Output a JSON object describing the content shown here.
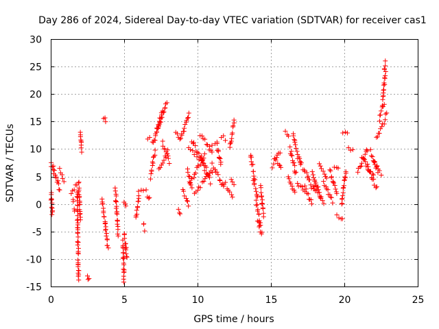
{
  "chart_data": {
    "type": "scatter",
    "title": "Day 286 of 2024, Sidereal Day-to-day VTEC variation (SDTVAR) for receiver cas1",
    "xlabel": "GPS time / hours",
    "ylabel": "SDTVAR / TECUs",
    "xlim": [
      0,
      25
    ],
    "ylim": [
      -15,
      30
    ],
    "xticks": [
      0,
      5,
      10,
      15,
      20,
      25
    ],
    "yticks": [
      -15,
      -10,
      -5,
      0,
      5,
      10,
      15,
      20,
      25,
      30
    ],
    "xtick_labels": [
      "0",
      "5",
      "10",
      "15",
      "20",
      "25"
    ],
    "ytick_labels": [
      "-15",
      "-10",
      "-5",
      "0",
      "5",
      "10",
      "15",
      "20",
      "25",
      "30"
    ],
    "grid": true,
    "marker": "+",
    "color": "#ff0000",
    "segments": [
      {
        "x0": 0.0,
        "x1": 0.2,
        "y0": 7.5,
        "y1": 5.5
      },
      {
        "x0": 0.0,
        "x1": 0.1,
        "y0": 3.0,
        "y1": -2.0
      },
      {
        "x0": 0.2,
        "x1": 0.6,
        "y0": 6.5,
        "y1": 2.5
      },
      {
        "x0": 0.6,
        "x1": 0.9,
        "y0": 6.5,
        "y1": 4.5
      },
      {
        "x0": 1.4,
        "x1": 1.8,
        "y0": 2.0,
        "y1": 3.5
      },
      {
        "x0": 1.5,
        "x1": 1.6,
        "y0": 0.5,
        "y1": -1.0
      },
      {
        "x0": 1.8,
        "x1": 1.9,
        "y0": 2.5,
        "y1": -14.0
      },
      {
        "x0": 1.9,
        "x1": 2.0,
        "y0": 4.0,
        "y1": -3.0
      },
      {
        "x0": 2.0,
        "x1": 2.1,
        "y0": 13.0,
        "y1": 9.5
      },
      {
        "x0": 2.5,
        "x1": 2.6,
        "y0": -13.5,
        "y1": -13.8
      },
      {
        "x0": 3.5,
        "x1": 3.7,
        "y0": 1.0,
        "y1": -3.5
      },
      {
        "x0": 3.6,
        "x1": 3.75,
        "y0": 16.0,
        "y1": 14.8
      },
      {
        "x0": 3.7,
        "x1": 3.9,
        "y0": -3.5,
        "y1": -8.0
      },
      {
        "x0": 4.4,
        "x1": 4.6,
        "y0": 2.5,
        "y1": -5.5
      },
      {
        "x0": 4.9,
        "x1": 5.0,
        "y0": -7.0,
        "y1": -14.0
      },
      {
        "x0": 5.0,
        "x1": 5.2,
        "y0": -5.5,
        "y1": -10.0
      },
      {
        "x0": 5.0,
        "x1": 5.1,
        "y0": 0.0,
        "y1": -0.5
      },
      {
        "x0": 5.8,
        "x1": 6.0,
        "y0": -2.5,
        "y1": 1.5
      },
      {
        "x0": 6.0,
        "x1": 6.5,
        "y0": 2.0,
        "y1": 3.0
      },
      {
        "x0": 6.3,
        "x1": 6.4,
        "y0": -3.5,
        "y1": -4.5
      },
      {
        "x0": 6.6,
        "x1": 6.7,
        "y0": 1.0,
        "y1": 1.5
      },
      {
        "x0": 6.6,
        "x1": 6.9,
        "y0": 12.0,
        "y1": 11.5
      },
      {
        "x0": 6.8,
        "x1": 7.1,
        "y0": 5.0,
        "y1": 9.5
      },
      {
        "x0": 7.0,
        "x1": 7.6,
        "y0": 11.0,
        "y1": 17.0
      },
      {
        "x0": 7.2,
        "x1": 7.9,
        "y0": 13.0,
        "y1": 18.5
      },
      {
        "x0": 7.4,
        "x1": 8.0,
        "y0": 6.5,
        "y1": 9.5
      },
      {
        "x0": 7.6,
        "x1": 8.1,
        "y0": 11.0,
        "y1": 7.5
      },
      {
        "x0": 8.5,
        "x1": 8.7,
        "y0": 13.0,
        "y1": 12.5
      },
      {
        "x0": 8.7,
        "x1": 8.8,
        "y0": -1.0,
        "y1": -1.5
      },
      {
        "x0": 8.8,
        "x1": 9.4,
        "y0": 11.5,
        "y1": 16.5
      },
      {
        "x0": 9.0,
        "x1": 9.4,
        "y0": 2.5,
        "y1": 0.0
      },
      {
        "x0": 9.3,
        "x1": 9.6,
        "y0": 6.0,
        "y1": 3.0
      },
      {
        "x0": 9.4,
        "x1": 10.2,
        "y0": 10.0,
        "y1": 8.0
      },
      {
        "x0": 9.5,
        "x1": 10.5,
        "y0": 4.0,
        "y1": 9.0
      },
      {
        "x0": 9.6,
        "x1": 10.6,
        "y0": 11.5,
        "y1": 7.0
      },
      {
        "x0": 9.8,
        "x1": 11.0,
        "y0": 2.0,
        "y1": 6.0
      },
      {
        "x0": 10.2,
        "x1": 11.0,
        "y0": 12.5,
        "y1": 9.5
      },
      {
        "x0": 10.3,
        "x1": 10.9,
        "y0": 7.5,
        "y1": 4.0
      },
      {
        "x0": 10.8,
        "x1": 11.2,
        "y0": 10.5,
        "y1": 11.0
      },
      {
        "x0": 11.0,
        "x1": 11.8,
        "y0": 7.0,
        "y1": 3.0
      },
      {
        "x0": 11.3,
        "x1": 11.6,
        "y0": 11.0,
        "y1": 7.0
      },
      {
        "x0": 11.6,
        "x1": 11.9,
        "y0": 12.5,
        "y1": 11.5
      },
      {
        "x0": 11.8,
        "x1": 12.4,
        "y0": 4.0,
        "y1": 1.5
      },
      {
        "x0": 12.2,
        "x1": 12.5,
        "y0": 10.5,
        "y1": 15.0
      },
      {
        "x0": 12.3,
        "x1": 12.5,
        "y0": 4.5,
        "y1": 3.5
      },
      {
        "x0": 13.6,
        "x1": 13.9,
        "y0": 9.0,
        "y1": 4.5
      },
      {
        "x0": 13.8,
        "x1": 14.1,
        "y0": 4.0,
        "y1": 1.0
      },
      {
        "x0": 14.0,
        "x1": 14.3,
        "y0": 0.5,
        "y1": -3.5
      },
      {
        "x0": 14.1,
        "x1": 14.4,
        "y0": -3.0,
        "y1": -5.5
      },
      {
        "x0": 14.3,
        "x1": 14.5,
        "y0": 3.0,
        "y1": -2.0
      },
      {
        "x0": 15.1,
        "x1": 15.6,
        "y0": 7.0,
        "y1": 9.5
      },
      {
        "x0": 15.3,
        "x1": 15.7,
        "y0": 8.5,
        "y1": 6.5
      },
      {
        "x0": 16.0,
        "x1": 16.2,
        "y0": 13.0,
        "y1": 12.0
      },
      {
        "x0": 16.2,
        "x1": 16.6,
        "y0": 5.0,
        "y1": 2.0
      },
      {
        "x0": 16.3,
        "x1": 16.7,
        "y0": 10.0,
        "y1": 5.5
      },
      {
        "x0": 16.5,
        "x1": 17.0,
        "y0": 12.5,
        "y1": 7.0
      },
      {
        "x0": 16.8,
        "x1": 17.3,
        "y0": 4.0,
        "y1": 2.0
      },
      {
        "x0": 17.0,
        "x1": 17.5,
        "y0": 7.5,
        "y1": 5.0
      },
      {
        "x0": 17.3,
        "x1": 17.8,
        "y0": 3.0,
        "y1": 0.0
      },
      {
        "x0": 17.5,
        "x1": 18.0,
        "y0": 5.0,
        "y1": 2.0
      },
      {
        "x0": 17.8,
        "x1": 18.4,
        "y0": 6.0,
        "y1": 1.0
      },
      {
        "x0": 18.0,
        "x1": 18.6,
        "y0": 3.0,
        "y1": 0.5
      },
      {
        "x0": 18.3,
        "x1": 18.8,
        "y0": 7.0,
        "y1": 4.5
      },
      {
        "x0": 18.6,
        "x1": 19.2,
        "y0": 4.0,
        "y1": 0.5
      },
      {
        "x0": 19.0,
        "x1": 19.5,
        "y0": 6.0,
        "y1": 2.0
      },
      {
        "x0": 19.3,
        "x1": 19.6,
        "y0": 7.0,
        "y1": 6.5
      },
      {
        "x0": 19.5,
        "x1": 19.9,
        "y0": -2.0,
        "y1": -3.0
      },
      {
        "x0": 19.8,
        "x1": 20.1,
        "y0": 0.0,
        "y1": 6.0
      },
      {
        "x0": 19.9,
        "x1": 20.2,
        "y0": 12.5,
        "y1": 13.0
      },
      {
        "x0": 20.3,
        "x1": 20.6,
        "y0": 10.5,
        "y1": 9.5
      },
      {
        "x0": 20.9,
        "x1": 21.6,
        "y0": 6.0,
        "y1": 10.0
      },
      {
        "x0": 21.2,
        "x1": 22.0,
        "y0": 8.5,
        "y1": 5.0
      },
      {
        "x0": 21.5,
        "x1": 22.2,
        "y0": 7.0,
        "y1": 3.0
      },
      {
        "x0": 21.8,
        "x1": 22.3,
        "y0": 9.5,
        "y1": 6.0
      },
      {
        "x0": 22.0,
        "x1": 22.5,
        "y0": 8.0,
        "y1": 5.5
      },
      {
        "x0": 22.2,
        "x1": 22.6,
        "y0": 12.0,
        "y1": 14.5
      },
      {
        "x0": 22.4,
        "x1": 22.7,
        "y0": 15.5,
        "y1": 18.5
      },
      {
        "x0": 22.6,
        "x1": 22.8,
        "y0": 19.0,
        "y1": 24.0
      },
      {
        "x0": 22.7,
        "x1": 22.8,
        "y0": 24.5,
        "y1": 26.0
      },
      {
        "x0": 22.7,
        "x1": 22.9,
        "y0": 15.0,
        "y1": 16.5
      }
    ]
  }
}
